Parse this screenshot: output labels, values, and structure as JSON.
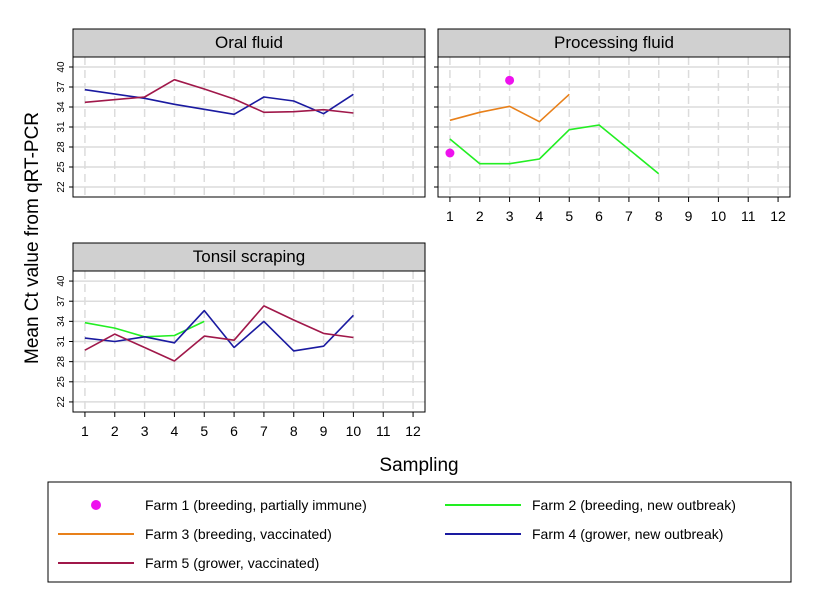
{
  "chart_data": {
    "type": "line",
    "xlabel": "Sampling",
    "ylabel": "Mean Ct value from qRT-PCR",
    "x_ticks": [
      1,
      2,
      3,
      4,
      5,
      6,
      7,
      8,
      9,
      10,
      11,
      12
    ],
    "y_ticks": [
      22,
      25,
      28,
      31,
      34,
      37,
      40
    ],
    "xlim": [
      0.6,
      12.4
    ],
    "ylim": [
      20.5,
      41.5
    ],
    "grid": true,
    "legend_position": "bottom",
    "series_styles": [
      {
        "name": "Farm 1 (breeding, partially immune)",
        "color": "#ee11ee",
        "mark": "point"
      },
      {
        "name": "Farm 2 (breeding, new outbreak)",
        "color": "#22ee22",
        "mark": "line"
      },
      {
        "name": "Farm 3 (breeding, vaccinated)",
        "color": "#e8801a",
        "mark": "line"
      },
      {
        "name": "Farm 4 (grower, new outbreak)",
        "color": "#1a1aa0",
        "mark": "line"
      },
      {
        "name": "Farm 5 (grower, vaccinated)",
        "color": "#a0184a",
        "mark": "line"
      }
    ],
    "panels": [
      {
        "title": "Oral fluid",
        "series": [
          {
            "name": "Farm 4 (grower, new outbreak)",
            "x": [
              1,
              3,
              4,
              6,
              7,
              8,
              9,
              10
            ],
            "y": [
              36.6,
              35.3,
              34.4,
              32.9,
              35.5,
              34.9,
              33.0,
              35.9
            ]
          },
          {
            "name": "Farm 5 (grower, vaccinated)",
            "x": [
              1,
              3,
              4,
              5,
              6,
              7,
              8,
              9,
              10
            ],
            "y": [
              34.7,
              35.5,
              38.1,
              36.7,
              35.2,
              33.2,
              33.3,
              33.6,
              33.1
            ]
          }
        ]
      },
      {
        "title": "Processing fluid",
        "series": [
          {
            "name": "Farm 1 (breeding, partially immune)",
            "x": [
              1,
              3
            ],
            "y": [
              27.1,
              38.0
            ]
          },
          {
            "name": "Farm 2 (breeding, new outbreak)",
            "x": [
              1,
              2,
              3,
              4,
              5,
              6,
              8
            ],
            "y": [
              29.2,
              25.5,
              25.5,
              26.2,
              30.6,
              31.3,
              24.0
            ]
          },
          {
            "name": "Farm 3 (breeding, vaccinated)",
            "x": [
              1,
              2,
              3,
              4,
              5
            ],
            "y": [
              32.0,
              33.2,
              34.1,
              31.8,
              35.9
            ]
          }
        ]
      },
      {
        "title": "Tonsil scraping",
        "series": [
          {
            "name": "Farm 2 (breeding, new outbreak)",
            "x": [
              1,
              2,
              3,
              4,
              5
            ],
            "y": [
              33.8,
              33.0,
              31.7,
              31.9,
              34.0
            ]
          },
          {
            "name": "Farm 4 (grower, new outbreak)",
            "x": [
              1,
              2,
              3,
              4,
              5,
              6,
              7,
              8,
              9,
              10
            ],
            "y": [
              31.5,
              31.0,
              31.7,
              30.8,
              35.6,
              30.1,
              34.0,
              29.6,
              30.3,
              34.9
            ]
          },
          {
            "name": "Farm 5 (grower, vaccinated)",
            "x": [
              1,
              2,
              3,
              4,
              5,
              6,
              7,
              8,
              9,
              10
            ],
            "y": [
              29.7,
              32.1,
              30.1,
              28.1,
              31.8,
              31.2,
              36.3,
              34.2,
              32.2,
              31.6
            ]
          }
        ]
      }
    ]
  }
}
